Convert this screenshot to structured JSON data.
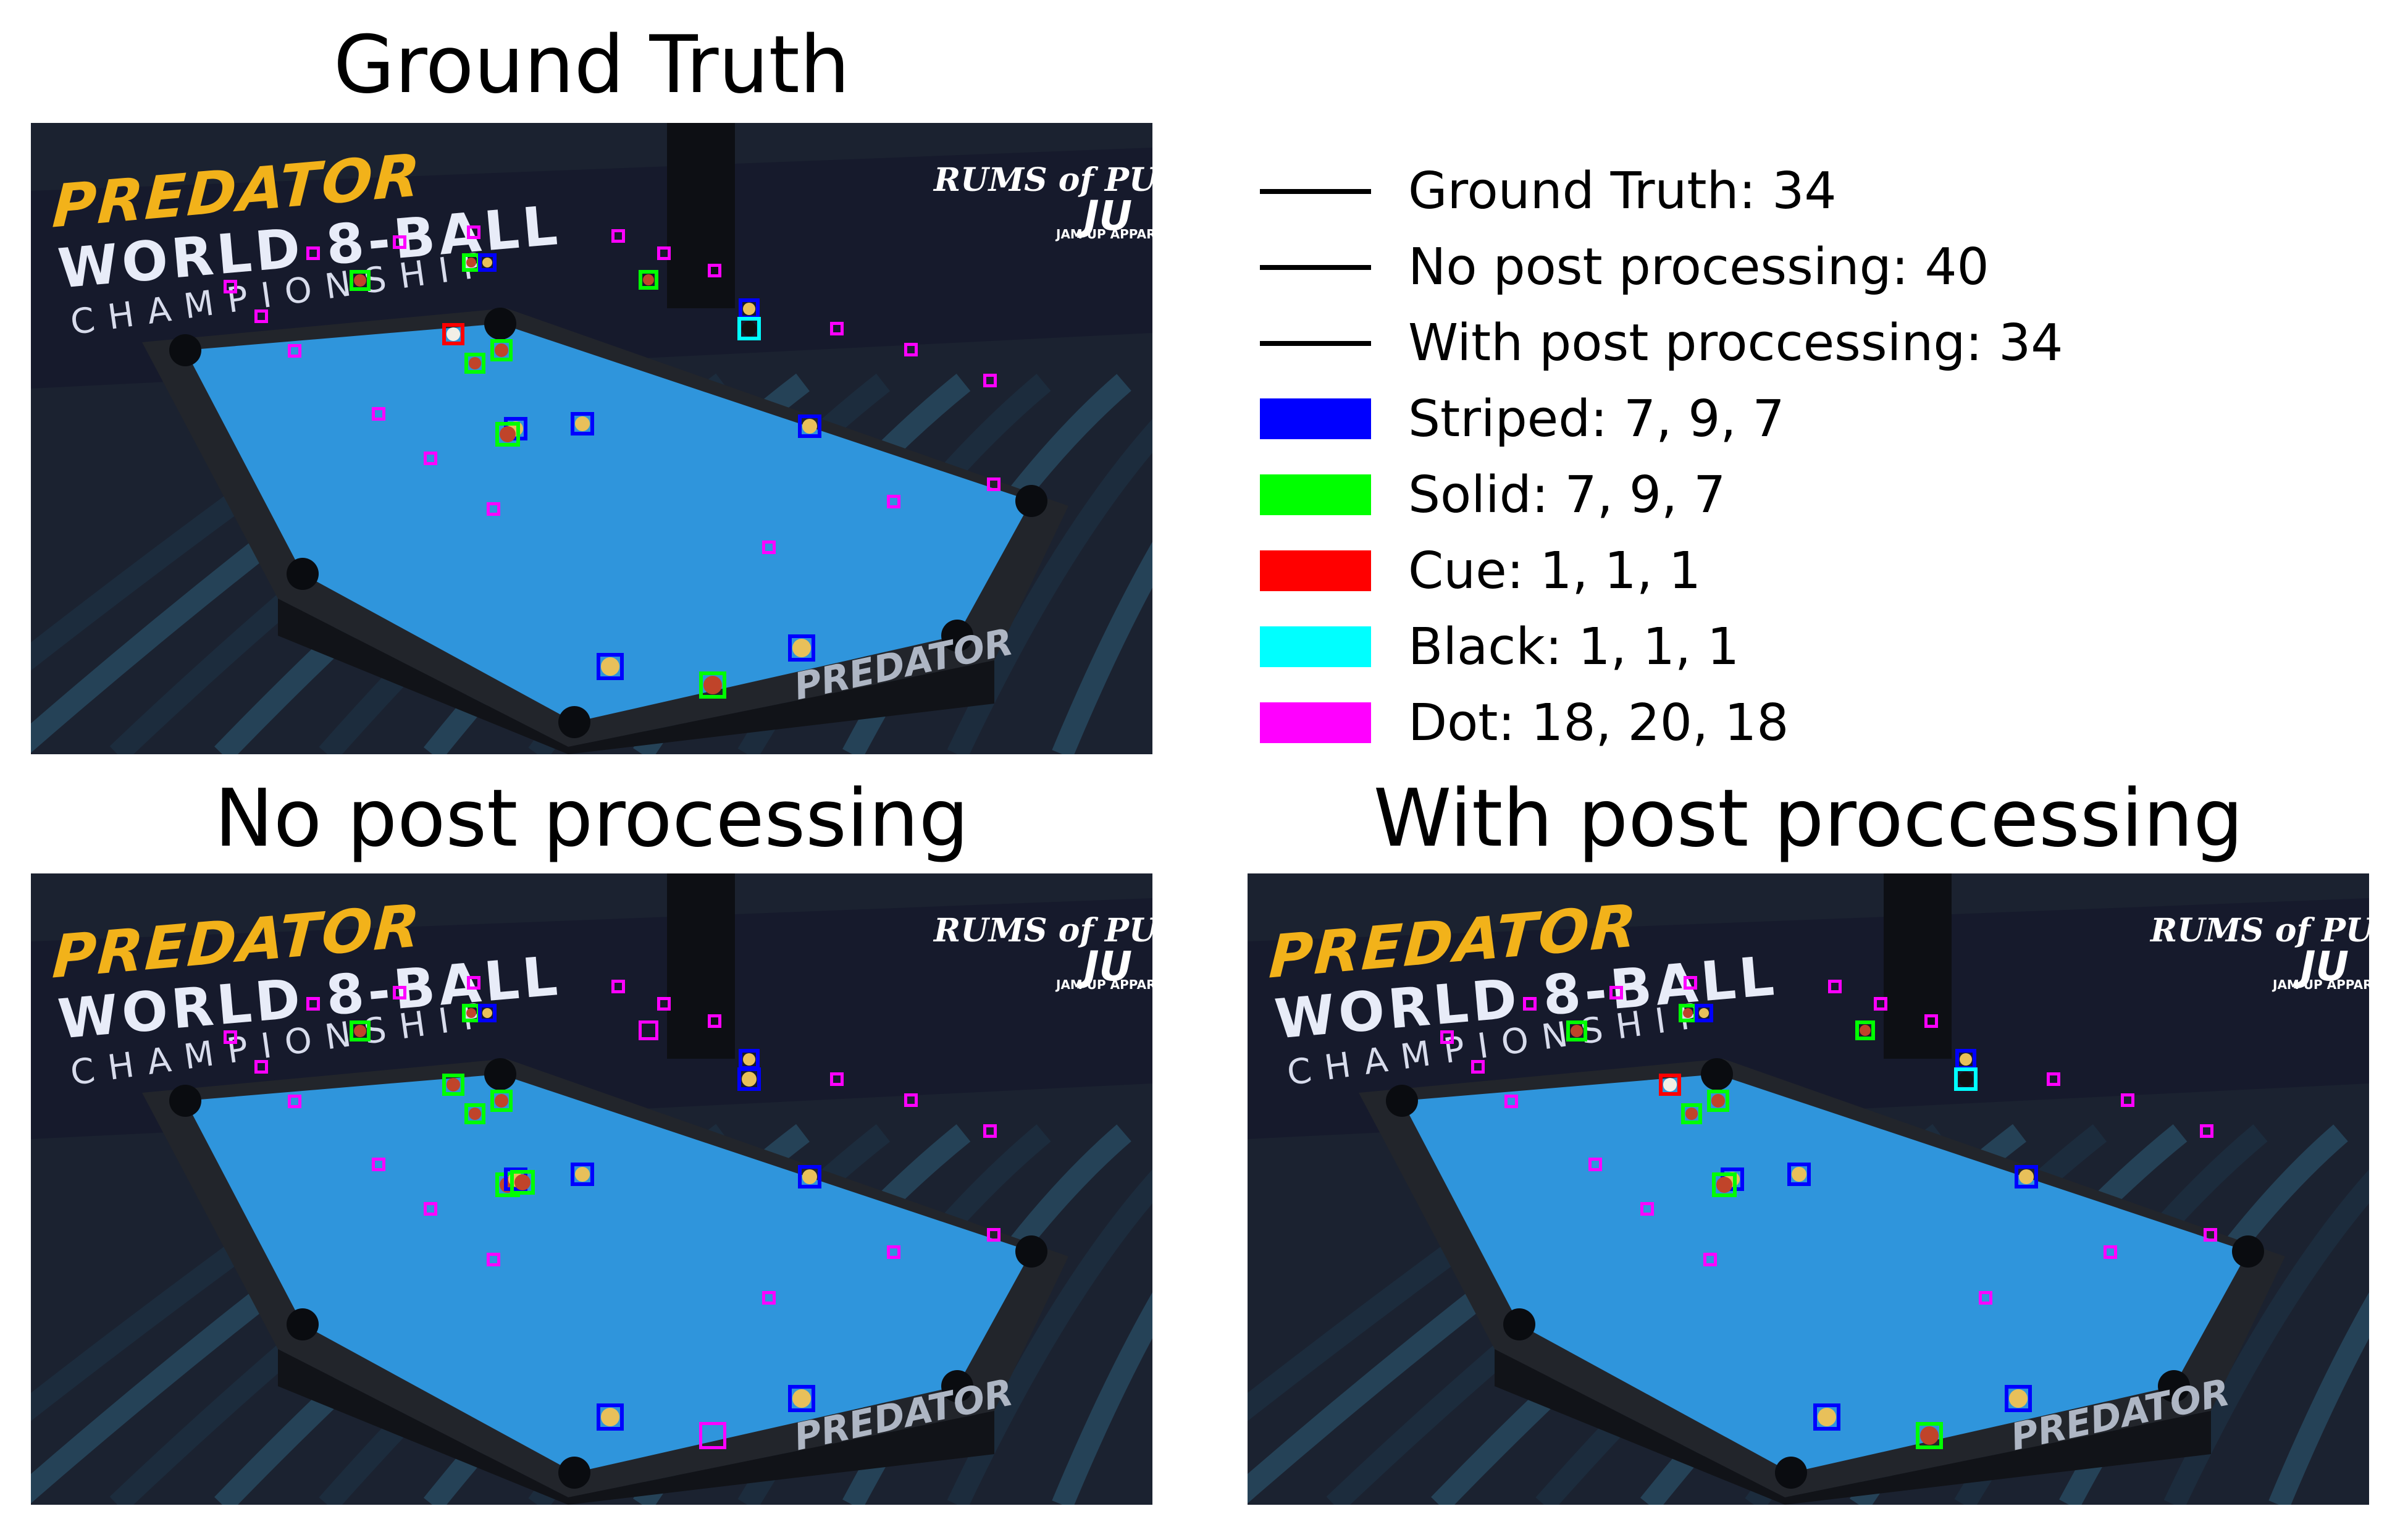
{
  "figure": {
    "titles": {
      "ground_truth": "Ground Truth",
      "no_post": "No post processing",
      "with_post": "With post proccessing"
    }
  },
  "scene_text": {
    "predator": "PREDATOR",
    "world": "WORLD 8-BALL",
    "championship": "CHAMPIONSHIP",
    "rums": "RUMS of PUERTO RICO",
    "ju": "JU",
    "ju_sub": "JAM UP APPAREL",
    "table_logo": "PREDATOR"
  },
  "legend": {
    "items": [
      {
        "label": "Ground Truth: 34",
        "kind": "line",
        "color": "#000000"
      },
      {
        "label": "No post processing: 40",
        "kind": "line",
        "color": "#000000"
      },
      {
        "label": "With post proccessing: 34",
        "kind": "line",
        "color": "#000000"
      },
      {
        "label": "Striped: 7, 9, 7",
        "kind": "patch",
        "color": "#0000ff"
      },
      {
        "label": "Solid: 7, 9, 7",
        "kind": "patch",
        "color": "#00ff00"
      },
      {
        "label": "Cue: 1, 1, 1",
        "kind": "patch",
        "color": "#ff0000"
      },
      {
        "label": "Black: 1, 1, 1",
        "kind": "patch",
        "color": "#00ffff"
      },
      {
        "label": "Dot: 18, 20, 18",
        "kind": "patch",
        "color": "#ff00ff"
      }
    ]
  },
  "colors": {
    "striped": "#0000ff",
    "solid": "#00ff00",
    "cue": "#ff0000",
    "black": "#00ffff",
    "dot": "#ff00ff",
    "cloth": "#2f95dc",
    "rail": "#22252b"
  }
}
